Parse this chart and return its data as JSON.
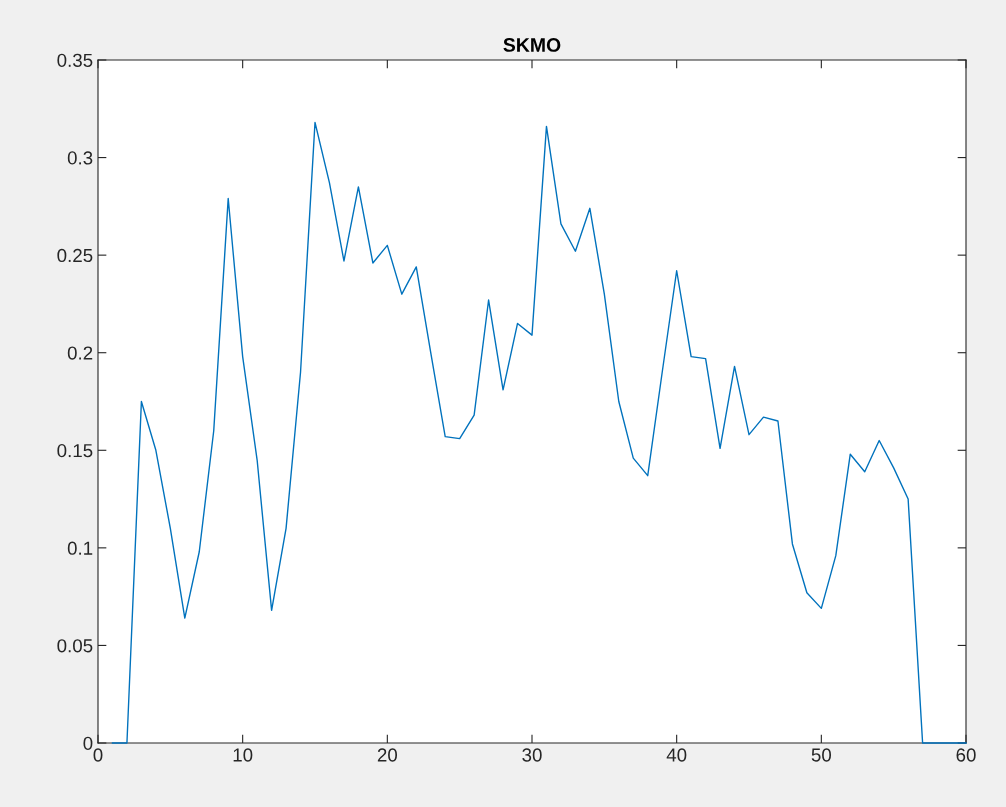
{
  "chart_data": {
    "type": "line",
    "title": "SKMO",
    "x": [
      1,
      2,
      3,
      4,
      5,
      6,
      7,
      8,
      9,
      10,
      11,
      12,
      13,
      14,
      15,
      16,
      17,
      18,
      19,
      20,
      21,
      22,
      23,
      24,
      25,
      26,
      27,
      28,
      29,
      30,
      31,
      32,
      33,
      34,
      35,
      36,
      37,
      38,
      39,
      40,
      41,
      42,
      43,
      44,
      45,
      46,
      47,
      48,
      49,
      50,
      51,
      52,
      53,
      54,
      55,
      56,
      57,
      58,
      59,
      60
    ],
    "series": [
      {
        "color": "#0072bd",
        "values": [
          0,
          0,
          0.175,
          0.15,
          0.11,
          0.064,
          0.098,
          0.16,
          0.279,
          0.198,
          0.145,
          0.068,
          0.11,
          0.19,
          0.318,
          0.287,
          0.247,
          0.285,
          0.246,
          0.255,
          0.23,
          0.244,
          0.2,
          0.157,
          0.156,
          0.168,
          0.227,
          0.181,
          0.215,
          0.209,
          0.316,
          0.266,
          0.252,
          0.274,
          0.23,
          0.175,
          0.146,
          0.137,
          0.19,
          0.242,
          0.198,
          0.197,
          0.151,
          0.193,
          0.158,
          0.167,
          0.165,
          0.102,
          0.077,
          0.069,
          0.096,
          0.148,
          0.139,
          0.155,
          0.141,
          0.125,
          0,
          0,
          0,
          0
        ]
      }
    ],
    "xlim": [
      0,
      60
    ],
    "xticks": [
      0,
      10,
      20,
      30,
      40,
      50,
      60
    ],
    "ylim": [
      0,
      0.35
    ],
    "yticks": [
      0,
      0.05,
      0.1,
      0.15,
      0.2,
      0.25,
      0.3,
      0.35
    ],
    "grid": false,
    "legend": false,
    "marker": "none",
    "line_style": "solid"
  }
}
